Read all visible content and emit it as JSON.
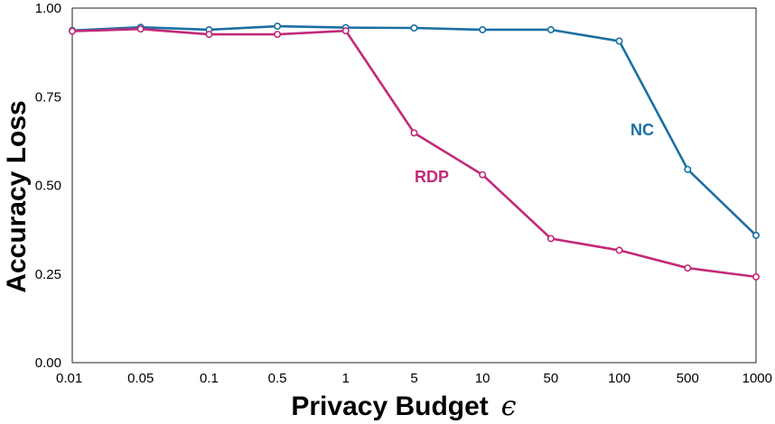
{
  "chart_data": {
    "type": "line",
    "title": "",
    "xlabel": "Privacy Budget",
    "xlabel_symbol": "ϵ",
    "ylabel": "Accuracy Loss",
    "categories": [
      "0.01",
      "0.05",
      "0.1",
      "0.5",
      "1",
      "5",
      "10",
      "50",
      "100",
      "500",
      "1000"
    ],
    "ylim": [
      0,
      1
    ],
    "yticks": [
      "0.00",
      "0.25",
      "0.50",
      "0.75",
      "1.00"
    ],
    "grid": false,
    "series": [
      {
        "name": "NC",
        "color": "#1a6fa3",
        "values": [
          0.937,
          0.946,
          0.939,
          0.949,
          0.945,
          0.944,
          0.939,
          0.939,
          0.907,
          0.545,
          0.359
        ]
      },
      {
        "name": "RDP",
        "color": "#c22a79",
        "values": [
          0.935,
          0.941,
          0.926,
          0.926,
          0.936,
          0.648,
          0.53,
          0.35,
          0.317,
          0.267,
          0.242
        ]
      }
    ]
  }
}
